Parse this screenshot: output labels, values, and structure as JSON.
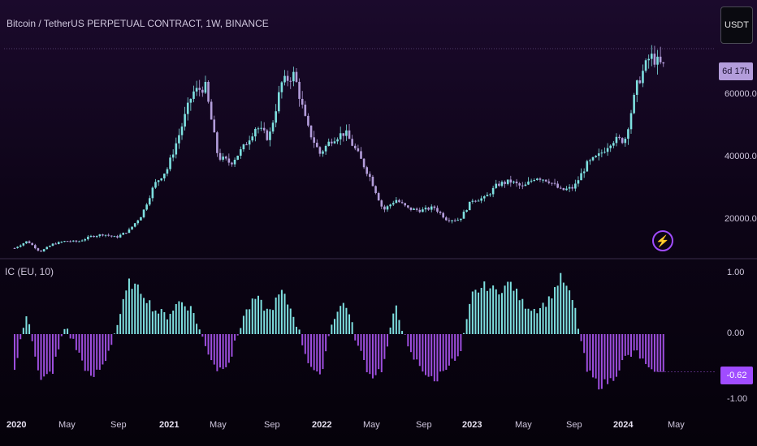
{
  "header": {
    "title": "Bitcoin / TetherUS PERPETUAL CONTRACT, 1W, BINANCE",
    "currency": "USDT"
  },
  "price_axis": {
    "labels": [
      "60000.0",
      "40000.0",
      "20000.0"
    ],
    "timer": "6d 17h"
  },
  "indicator": {
    "title": "IC (EU, 10)",
    "axis_labels": [
      "1.00",
      "0.00",
      "-1.00"
    ],
    "current_value": "-0.62"
  },
  "time_axis": {
    "labels": [
      {
        "text": "2020",
        "bold": true
      },
      {
        "text": "May",
        "bold": false
      },
      {
        "text": "Sep",
        "bold": false
      },
      {
        "text": "2021",
        "bold": true
      },
      {
        "text": "May",
        "bold": false
      },
      {
        "text": "Sep",
        "bold": false
      },
      {
        "text": "2022",
        "bold": true
      },
      {
        "text": "May",
        "bold": false
      },
      {
        "text": "Sep",
        "bold": false
      },
      {
        "text": "2023",
        "bold": true
      },
      {
        "text": "May",
        "bold": false
      },
      {
        "text": "Sep",
        "bold": false
      },
      {
        "text": "2024",
        "bold": true
      },
      {
        "text": "May",
        "bold": false
      }
    ]
  },
  "colors": {
    "up": "#7ee0e0",
    "down": "#b39ddb",
    "ind_pos": "#7ee0e0",
    "ind_neg": "#9d4edd",
    "grid": "#2a1f3a",
    "divider": "#3a2d4a"
  },
  "icons": {
    "alert": "lightning-bolt-icon"
  },
  "chart_data": [
    {
      "type": "candlestick",
      "title": "Bitcoin / TetherUS PERPETUAL CONTRACT, 1W, BINANCE",
      "x_range": [
        "2020-01",
        "2024-04"
      ],
      "ylim": [
        4000,
        75000
      ],
      "y_ticks": [
        20000,
        40000,
        60000
      ],
      "price_path": [
        [
          "2020-01",
          7200
        ],
        [
          "2020-02",
          9500
        ],
        [
          "2020-03",
          6000
        ],
        [
          "2020-04",
          8500
        ],
        [
          "2020-05",
          9500
        ],
        [
          "2020-06",
          9300
        ],
        [
          "2020-07",
          11000
        ],
        [
          "2020-08",
          11700
        ],
        [
          "2020-09",
          10700
        ],
        [
          "2020-10",
          13000
        ],
        [
          "2020-11",
          18000
        ],
        [
          "2020-12",
          28000
        ],
        [
          "2021-01",
          33000
        ],
        [
          "2021-02",
          45000
        ],
        [
          "2021-03",
          58000
        ],
        [
          "2021-04",
          60000
        ],
        [
          "2021-05",
          37000
        ],
        [
          "2021-06",
          35000
        ],
        [
          "2021-07",
          40000
        ],
        [
          "2021-08",
          47000
        ],
        [
          "2021-09",
          43000
        ],
        [
          "2021-10",
          61000
        ],
        [
          "2021-11",
          64000
        ],
        [
          "2021-12",
          47000
        ],
        [
          "2022-01",
          38000
        ],
        [
          "2022-02",
          43000
        ],
        [
          "2022-03",
          45000
        ],
        [
          "2022-04",
          38000
        ],
        [
          "2022-05",
          30000
        ],
        [
          "2022-06",
          19500
        ],
        [
          "2022-07",
          23000
        ],
        [
          "2022-08",
          20000
        ],
        [
          "2022-09",
          19500
        ],
        [
          "2022-10",
          20500
        ],
        [
          "2022-11",
          16500
        ],
        [
          "2022-12",
          16500
        ],
        [
          "2023-01",
          23000
        ],
        [
          "2023-02",
          23500
        ],
        [
          "2023-03",
          28000
        ],
        [
          "2023-04",
          29000
        ],
        [
          "2023-05",
          27000
        ],
        [
          "2023-06",
          30500
        ],
        [
          "2023-07",
          29300
        ],
        [
          "2023-08",
          26000
        ],
        [
          "2023-09",
          27000
        ],
        [
          "2023-10",
          34500
        ],
        [
          "2023-11",
          37500
        ],
        [
          "2023-12",
          42500
        ],
        [
          "2024-01",
          42500
        ],
        [
          "2024-02",
          61000
        ],
        [
          "2024-03",
          70000
        ],
        [
          "2024-04",
          66500
        ]
      ]
    },
    {
      "type": "bar",
      "title": "IC (EU, 10)",
      "ylim": [
        -1,
        1
      ],
      "y_ticks": [
        1,
        0,
        -1
      ],
      "last_value": -0.62,
      "values_by_month": [
        [
          "2020-01",
          -0.6
        ],
        [
          "2020-02",
          0.4
        ],
        [
          "2020-03",
          -0.8
        ],
        [
          "2020-04",
          -0.6
        ],
        [
          "2020-05",
          0.15
        ],
        [
          "2020-06",
          -0.3
        ],
        [
          "2020-07",
          -0.75
        ],
        [
          "2020-08",
          -0.5
        ],
        [
          "2020-09",
          0.1
        ],
        [
          "2020-10",
          0.85
        ],
        [
          "2020-11",
          0.7
        ],
        [
          "2020-12",
          0.4
        ],
        [
          "2021-01",
          0.3
        ],
        [
          "2021-02",
          0.55
        ],
        [
          "2021-03",
          0.4
        ],
        [
          "2021-04",
          -0.2
        ],
        [
          "2021-05",
          -0.6
        ],
        [
          "2021-06",
          -0.4
        ],
        [
          "2021-07",
          0.3
        ],
        [
          "2021-08",
          0.6
        ],
        [
          "2021-09",
          0.35
        ],
        [
          "2021-10",
          0.7
        ],
        [
          "2021-11",
          0.3
        ],
        [
          "2021-12",
          -0.4
        ],
        [
          "2022-01",
          -0.75
        ],
        [
          "2022-02",
          0.25
        ],
        [
          "2022-03",
          0.55
        ],
        [
          "2022-04",
          -0.2
        ],
        [
          "2022-05",
          -0.7
        ],
        [
          "2022-06",
          -0.55
        ],
        [
          "2022-07",
          0.5
        ],
        [
          "2022-08",
          -0.3
        ],
        [
          "2022-09",
          -0.55
        ],
        [
          "2022-10",
          -0.8
        ],
        [
          "2022-11",
          -0.5
        ],
        [
          "2022-12",
          -0.4
        ],
        [
          "2023-01",
          0.65
        ],
        [
          "2023-02",
          0.8
        ],
        [
          "2023-03",
          0.7
        ],
        [
          "2023-04",
          0.85
        ],
        [
          "2023-05",
          0.5
        ],
        [
          "2023-06",
          0.4
        ],
        [
          "2023-07",
          0.55
        ],
        [
          "2023-08",
          0.95
        ],
        [
          "2023-09",
          0.5
        ],
        [
          "2023-10",
          -0.6
        ],
        [
          "2023-11",
          -0.85
        ],
        [
          "2023-12",
          -0.75
        ],
        [
          "2024-01",
          -0.4
        ],
        [
          "2024-02",
          -0.3
        ],
        [
          "2024-03",
          -0.65
        ],
        [
          "2024-04",
          -0.62
        ]
      ]
    }
  ]
}
